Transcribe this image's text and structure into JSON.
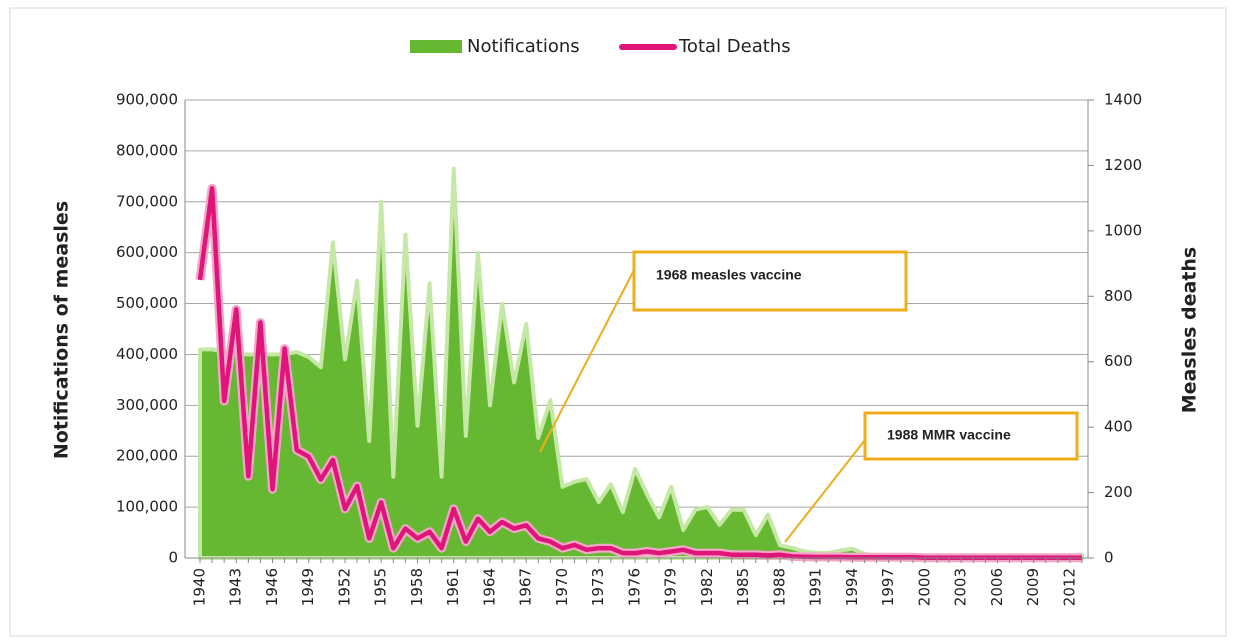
{
  "chart_data": {
    "type": "area-line",
    "categories": [
      "1940",
      null,
      null,
      "1943",
      null,
      null,
      "1946",
      null,
      null,
      "1949",
      null,
      null,
      "1952",
      null,
      null,
      "1955",
      null,
      null,
      "1958",
      null,
      null,
      "1961",
      null,
      null,
      "1964",
      null,
      null,
      "1967",
      null,
      null,
      "1970",
      null,
      null,
      "1973",
      null,
      null,
      "1976",
      null,
      null,
      "1979",
      null,
      null,
      "1982",
      null,
      null,
      "1985",
      null,
      null,
      "1988",
      null,
      null,
      "1991",
      null,
      null,
      "1994",
      null,
      null,
      "1997",
      null,
      null,
      "2000",
      null,
      null,
      "2003",
      null,
      null,
      "2006",
      null,
      null,
      "2009",
      null,
      null,
      "2012",
      null
    ],
    "series": [
      {
        "name": "Notifications",
        "color": "#66b832",
        "values": [
          410000,
          410000,
          405000,
          400000,
          400000,
          400000,
          400000,
          400000,
          405000,
          395000,
          375000,
          620000,
          390000,
          545000,
          230000,
          700000,
          160000,
          635000,
          260000,
          540000,
          160000,
          765000,
          240000,
          600000,
          300000,
          500000,
          345000,
          460000,
          236000,
          310000,
          140000,
          150000,
          155000,
          110000,
          145000,
          90000,
          175000,
          125000,
          80000,
          140000,
          55000,
          95000,
          100000,
          65000,
          95000,
          95000,
          45000,
          85000,
          25000,
          20000,
          13000,
          10000,
          10000,
          15000,
          18000,
          8000,
          5000,
          4000,
          3000,
          2500,
          2000,
          2000,
          2000,
          2500,
          2000,
          2000,
          2500,
          2000,
          3000,
          2000,
          2500,
          2000,
          2500,
          6000
        ]
      },
      {
        "name": "Total Deaths",
        "color": "#e0157a",
        "axis": "y2",
        "values": [
          850,
          1130,
          480,
          760,
          250,
          720,
          210,
          640,
          330,
          310,
          240,
          300,
          150,
          220,
          60,
          170,
          30,
          90,
          60,
          80,
          30,
          150,
          50,
          120,
          80,
          110,
          90,
          100,
          60,
          50,
          30,
          40,
          25,
          30,
          30,
          15,
          15,
          20,
          15,
          20,
          25,
          15,
          15,
          15,
          10,
          10,
          10,
          8,
          10,
          5,
          4,
          3,
          3,
          3,
          2,
          2,
          2,
          2,
          2,
          2,
          1,
          1,
          1,
          1,
          1,
          1,
          1,
          1,
          1,
          1,
          1,
          1,
          1,
          1
        ]
      }
    ],
    "ylabel": "Notifications of measles",
    "y2label": "Measles deaths",
    "ylim": [
      0,
      900000
    ],
    "yticks": [
      0,
      {
        "value": 100000,
        "label": "100,000"
      },
      {
        "value": 200000,
        "label": "200,000"
      },
      {
        "value": 300000,
        "label": "300,000"
      },
      {
        "value": 400000,
        "label": "400,000"
      },
      {
        "value": 500000,
        "label": "500,000"
      },
      {
        "value": 600000,
        "label": "600,000"
      },
      {
        "value": 700000,
        "label": "700,000"
      },
      {
        "value": 800000,
        "label": "800,000"
      },
      {
        "value": 900000,
        "label": "900,000"
      }
    ],
    "y2lim": [
      0,
      1400
    ],
    "y2ticks": [
      0,
      200,
      400,
      600,
      800,
      1000,
      1200,
      1400
    ],
    "grid": true,
    "legend": "top",
    "annotations": [
      "1968 measles vaccine",
      "1988 MMR vaccine"
    ]
  }
}
